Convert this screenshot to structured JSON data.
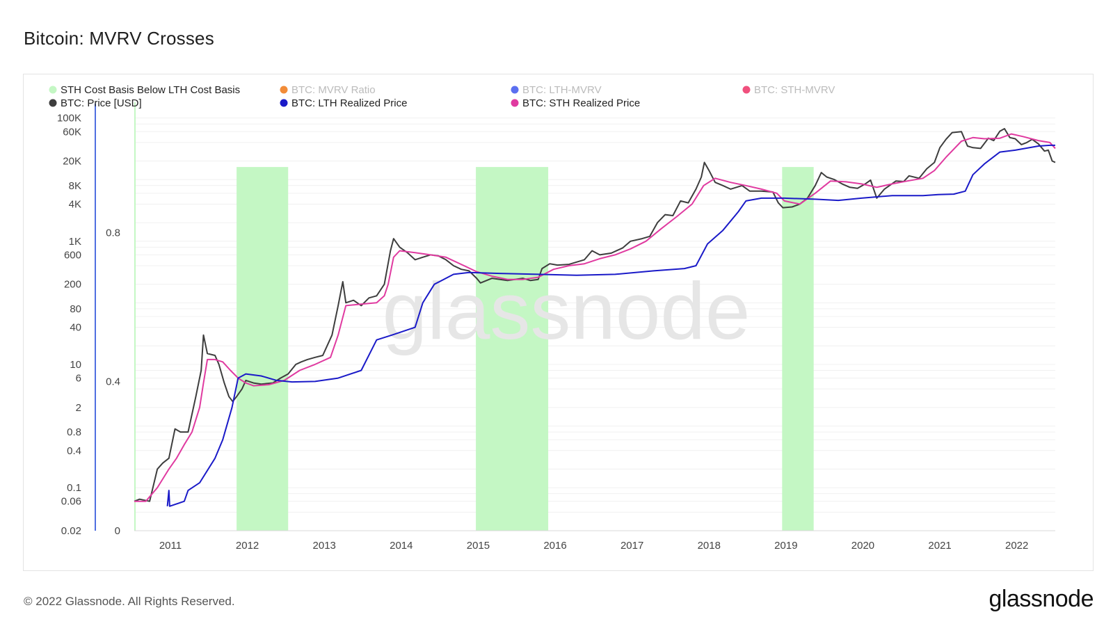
{
  "page": {
    "title": "Bitcoin: MVRV Crosses",
    "footer": "© 2022 Glassnode. All Rights Reserved.",
    "logo": "glassnode",
    "watermark": "glassnode"
  },
  "chart_data": {
    "type": "line",
    "title": "Bitcoin: MVRV Crosses",
    "x_domain": [
      2010.55,
      2022.52
    ],
    "x_ticks": [
      "2011",
      "2012",
      "2013",
      "2014",
      "2015",
      "2016",
      "2017",
      "2018",
      "2019",
      "2020",
      "2021",
      "2022"
    ],
    "y_left": {
      "scale": "log",
      "range": [
        0.02,
        100000
      ],
      "ticks": [
        {
          "label": "100K",
          "value": 100000
        },
        {
          "label": "60K",
          "value": 60000
        },
        {
          "label": "20K",
          "value": 20000
        },
        {
          "label": "8K",
          "value": 8000
        },
        {
          "label": "4K",
          "value": 4000
        },
        {
          "label": "1K",
          "value": 1000
        },
        {
          "label": "600",
          "value": 600
        },
        {
          "label": "200",
          "value": 200
        },
        {
          "label": "80",
          "value": 80
        },
        {
          "label": "40",
          "value": 40
        },
        {
          "label": "10",
          "value": 10
        },
        {
          "label": "6",
          "value": 6
        },
        {
          "label": "2",
          "value": 2
        },
        {
          "label": "0.8",
          "value": 0.8
        },
        {
          "label": "0.4",
          "value": 0.4
        },
        {
          "label": "0.1",
          "value": 0.1
        },
        {
          "label": "0.06",
          "value": 0.06
        },
        {
          "label": "0.02",
          "value": 0.02
        }
      ]
    },
    "y_right": {
      "scale": "linear",
      "range": [
        0,
        1.15
      ],
      "ticks": [
        {
          "label": "0.8",
          "value": 0.8
        },
        {
          "label": "0.4",
          "value": 0.4
        },
        {
          "label": "0",
          "value": 0
        }
      ]
    },
    "legend": [
      {
        "label": "STH Cost Basis Below LTH Cost Basis",
        "color": "#c4f7c4",
        "active": true
      },
      {
        "label": "BTC: MVRV Ratio",
        "color": "#f28c38",
        "active": false
      },
      {
        "label": "BTC: LTH-MVRV",
        "color": "#5b6ff0",
        "active": false
      },
      {
        "label": "BTC: STH-MVRV",
        "color": "#f0507d",
        "active": false
      },
      {
        "label": "BTC: Price [USD]",
        "color": "#3d3d3d",
        "active": true
      },
      {
        "label": "BTC: LTH Realized Price",
        "color": "#1a1ac8",
        "active": true
      },
      {
        "label": "BTC: STH Realized Price",
        "color": "#e03aa0",
        "active": true
      }
    ],
    "shaded_periods": [
      {
        "start": 2011.88,
        "end": 2012.55
      },
      {
        "start": 2014.99,
        "end": 2015.93
      },
      {
        "start": 2018.97,
        "end": 2019.38
      }
    ],
    "series": [
      {
        "name": "BTC: Price [USD]",
        "color": "#3d3d3d",
        "points": [
          [
            2010.55,
            0.06
          ],
          [
            2010.62,
            0.065
          ],
          [
            2010.75,
            0.06
          ],
          [
            2010.85,
            0.2
          ],
          [
            2010.92,
            0.25
          ],
          [
            2011.0,
            0.3
          ],
          [
            2011.08,
            0.9
          ],
          [
            2011.15,
            0.8
          ],
          [
            2011.25,
            0.8
          ],
          [
            2011.35,
            3
          ],
          [
            2011.42,
            8
          ],
          [
            2011.45,
            30
          ],
          [
            2011.5,
            15
          ],
          [
            2011.6,
            14
          ],
          [
            2011.65,
            10
          ],
          [
            2011.72,
            5
          ],
          [
            2011.78,
            3
          ],
          [
            2011.83,
            2.5
          ],
          [
            2011.88,
            3
          ],
          [
            2011.95,
            4
          ],
          [
            2012.0,
            5.5
          ],
          [
            2012.1,
            5
          ],
          [
            2012.2,
            4.8
          ],
          [
            2012.35,
            5
          ],
          [
            2012.45,
            6
          ],
          [
            2012.55,
            7
          ],
          [
            2012.65,
            10
          ],
          [
            2012.72,
            11
          ],
          [
            2012.8,
            12
          ],
          [
            2012.9,
            13
          ],
          [
            2013.0,
            14
          ],
          [
            2013.12,
            30
          ],
          [
            2013.2,
            90
          ],
          [
            2013.26,
            220
          ],
          [
            2013.3,
            100
          ],
          [
            2013.4,
            110
          ],
          [
            2013.5,
            90
          ],
          [
            2013.6,
            120
          ],
          [
            2013.7,
            130
          ],
          [
            2013.8,
            200
          ],
          [
            2013.88,
            700
          ],
          [
            2013.92,
            1100
          ],
          [
            2014.0,
            800
          ],
          [
            2014.1,
            650
          ],
          [
            2014.2,
            500
          ],
          [
            2014.3,
            550
          ],
          [
            2014.4,
            600
          ],
          [
            2014.5,
            580
          ],
          [
            2014.6,
            500
          ],
          [
            2014.7,
            400
          ],
          [
            2014.8,
            350
          ],
          [
            2014.9,
            330
          ],
          [
            2015.0,
            250
          ],
          [
            2015.05,
            210
          ],
          [
            2015.2,
            250
          ],
          [
            2015.4,
            230
          ],
          [
            2015.6,
            250
          ],
          [
            2015.7,
            230
          ],
          [
            2015.8,
            240
          ],
          [
            2015.85,
            360
          ],
          [
            2015.95,
            430
          ],
          [
            2016.05,
            410
          ],
          [
            2016.2,
            420
          ],
          [
            2016.4,
            500
          ],
          [
            2016.5,
            700
          ],
          [
            2016.6,
            600
          ],
          [
            2016.75,
            640
          ],
          [
            2016.9,
            780
          ],
          [
            2017.0,
            1000
          ],
          [
            2017.15,
            1100
          ],
          [
            2017.25,
            1200
          ],
          [
            2017.35,
            2000
          ],
          [
            2017.45,
            2700
          ],
          [
            2017.55,
            2600
          ],
          [
            2017.65,
            4500
          ],
          [
            2017.75,
            4200
          ],
          [
            2017.85,
            7000
          ],
          [
            2017.92,
            11000
          ],
          [
            2017.96,
            19000
          ],
          [
            2018.02,
            14000
          ],
          [
            2018.1,
            9000
          ],
          [
            2018.2,
            8000
          ],
          [
            2018.3,
            7000
          ],
          [
            2018.45,
            8000
          ],
          [
            2018.55,
            6500
          ],
          [
            2018.7,
            6500
          ],
          [
            2018.85,
            6300
          ],
          [
            2018.92,
            4200
          ],
          [
            2018.98,
            3500
          ],
          [
            2019.1,
            3600
          ],
          [
            2019.2,
            4000
          ],
          [
            2019.3,
            5000
          ],
          [
            2019.4,
            8000
          ],
          [
            2019.48,
            13000
          ],
          [
            2019.55,
            11000
          ],
          [
            2019.65,
            10000
          ],
          [
            2019.75,
            8500
          ],
          [
            2019.85,
            7500
          ],
          [
            2019.95,
            7200
          ],
          [
            2020.05,
            8500
          ],
          [
            2020.12,
            9800
          ],
          [
            2020.2,
            5000
          ],
          [
            2020.3,
            7000
          ],
          [
            2020.45,
            9500
          ],
          [
            2020.55,
            9300
          ],
          [
            2020.62,
            11500
          ],
          [
            2020.75,
            10500
          ],
          [
            2020.85,
            15000
          ],
          [
            2020.95,
            19000
          ],
          [
            2021.02,
            33000
          ],
          [
            2021.1,
            45000
          ],
          [
            2021.18,
            58000
          ],
          [
            2021.3,
            60000
          ],
          [
            2021.38,
            35000
          ],
          [
            2021.45,
            33000
          ],
          [
            2021.55,
            32000
          ],
          [
            2021.65,
            47000
          ],
          [
            2021.72,
            43000
          ],
          [
            2021.8,
            61000
          ],
          [
            2021.86,
            67000
          ],
          [
            2021.93,
            48000
          ],
          [
            2022.0,
            46000
          ],
          [
            2022.08,
            37000
          ],
          [
            2022.15,
            40000
          ],
          [
            2022.22,
            45000
          ],
          [
            2022.3,
            38000
          ],
          [
            2022.38,
            29000
          ],
          [
            2022.43,
            30000
          ],
          [
            2022.48,
            20000
          ],
          [
            2022.52,
            19000
          ]
        ]
      },
      {
        "name": "BTC: STH Realized Price",
        "color": "#e03aa0",
        "points": [
          [
            2010.55,
            0.06
          ],
          [
            2010.7,
            0.06
          ],
          [
            2010.85,
            0.1
          ],
          [
            2011.0,
            0.2
          ],
          [
            2011.1,
            0.3
          ],
          [
            2011.2,
            0.5
          ],
          [
            2011.3,
            0.8
          ],
          [
            2011.4,
            2
          ],
          [
            2011.45,
            5
          ],
          [
            2011.5,
            12
          ],
          [
            2011.6,
            12
          ],
          [
            2011.7,
            11
          ],
          [
            2011.8,
            8
          ],
          [
            2011.9,
            6
          ],
          [
            2012.0,
            5
          ],
          [
            2012.1,
            4.5
          ],
          [
            2012.3,
            4.7
          ],
          [
            2012.5,
            5.5
          ],
          [
            2012.7,
            8
          ],
          [
            2012.9,
            10
          ],
          [
            2013.1,
            13
          ],
          [
            2013.2,
            30
          ],
          [
            2013.3,
            90
          ],
          [
            2013.5,
            95
          ],
          [
            2013.7,
            100
          ],
          [
            2013.8,
            130
          ],
          [
            2013.85,
            200
          ],
          [
            2013.92,
            550
          ],
          [
            2014.0,
            700
          ],
          [
            2014.2,
            650
          ],
          [
            2014.4,
            600
          ],
          [
            2014.6,
            550
          ],
          [
            2014.8,
            420
          ],
          [
            2015.0,
            320
          ],
          [
            2015.2,
            270
          ],
          [
            2015.4,
            240
          ],
          [
            2015.6,
            240
          ],
          [
            2015.8,
            260
          ],
          [
            2016.0,
            350
          ],
          [
            2016.2,
            400
          ],
          [
            2016.4,
            430
          ],
          [
            2016.6,
            520
          ],
          [
            2016.8,
            600
          ],
          [
            2017.0,
            750
          ],
          [
            2017.2,
            1000
          ],
          [
            2017.4,
            1600
          ],
          [
            2017.6,
            2500
          ],
          [
            2017.8,
            4000
          ],
          [
            2017.95,
            8000
          ],
          [
            2018.1,
            10500
          ],
          [
            2018.3,
            9000
          ],
          [
            2018.5,
            8000
          ],
          [
            2018.7,
            7000
          ],
          [
            2018.9,
            6000
          ],
          [
            2019.0,
            4500
          ],
          [
            2019.2,
            4000
          ],
          [
            2019.4,
            6000
          ],
          [
            2019.6,
            9500
          ],
          [
            2019.8,
            9200
          ],
          [
            2020.0,
            8500
          ],
          [
            2020.2,
            7500
          ],
          [
            2020.4,
            8500
          ],
          [
            2020.6,
            9500
          ],
          [
            2020.8,
            10500
          ],
          [
            2020.95,
            14000
          ],
          [
            2021.1,
            23000
          ],
          [
            2021.3,
            42000
          ],
          [
            2021.45,
            48000
          ],
          [
            2021.6,
            46000
          ],
          [
            2021.8,
            47000
          ],
          [
            2021.95,
            55000
          ],
          [
            2022.1,
            50000
          ],
          [
            2022.3,
            43000
          ],
          [
            2022.45,
            40000
          ],
          [
            2022.52,
            32000
          ]
        ]
      },
      {
        "name": "BTC: LTH Realized Price",
        "color": "#1a1ac8",
        "points": [
          [
            2010.98,
            0.05
          ],
          [
            2011.0,
            0.09
          ],
          [
            2011.01,
            0.05
          ],
          [
            2011.2,
            0.06
          ],
          [
            2011.25,
            0.09
          ],
          [
            2011.4,
            0.12
          ],
          [
            2011.6,
            0.3
          ],
          [
            2011.7,
            0.6
          ],
          [
            2011.82,
            2
          ],
          [
            2011.9,
            6
          ],
          [
            2012.0,
            7
          ],
          [
            2012.2,
            6.5
          ],
          [
            2012.4,
            5.5
          ],
          [
            2012.6,
            5.2
          ],
          [
            2012.9,
            5.3
          ],
          [
            2013.2,
            6
          ],
          [
            2013.5,
            8
          ],
          [
            2013.7,
            25
          ],
          [
            2013.9,
            30
          ],
          [
            2014.2,
            40
          ],
          [
            2014.3,
            100
          ],
          [
            2014.45,
            200
          ],
          [
            2014.7,
            290
          ],
          [
            2014.9,
            310
          ],
          [
            2015.3,
            300
          ],
          [
            2015.8,
            290
          ],
          [
            2016.3,
            280
          ],
          [
            2016.8,
            290
          ],
          [
            2017.3,
            330
          ],
          [
            2017.7,
            360
          ],
          [
            2017.85,
            400
          ],
          [
            2018.0,
            900
          ],
          [
            2018.2,
            1500
          ],
          [
            2018.4,
            3000
          ],
          [
            2018.5,
            4500
          ],
          [
            2018.7,
            5000
          ],
          [
            2019.0,
            5000
          ],
          [
            2019.4,
            4800
          ],
          [
            2019.7,
            4600
          ],
          [
            2020.0,
            5000
          ],
          [
            2020.4,
            5500
          ],
          [
            2020.8,
            5500
          ],
          [
            2021.0,
            5700
          ],
          [
            2021.2,
            5800
          ],
          [
            2021.35,
            6500
          ],
          [
            2021.45,
            12000
          ],
          [
            2021.6,
            18000
          ],
          [
            2021.8,
            28000
          ],
          [
            2022.0,
            30000
          ],
          [
            2022.3,
            35000
          ],
          [
            2022.45,
            36000
          ],
          [
            2022.52,
            36000
          ]
        ]
      }
    ]
  }
}
